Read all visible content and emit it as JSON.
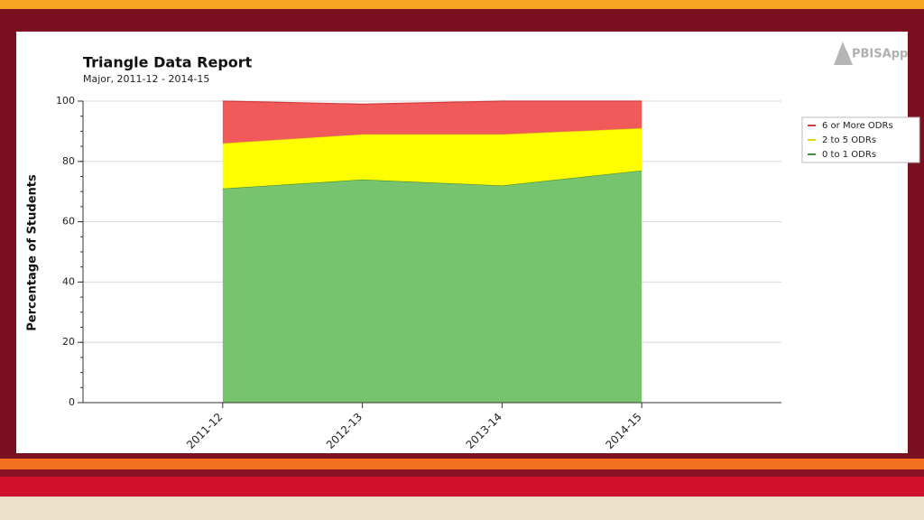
{
  "logo_text": "PBISApps",
  "chart_data": {
    "type": "stacked-area",
    "title": "Triangle Data Report",
    "subtitle": "Major, 2011-12 - 2014-15",
    "y_label": "Percentage of Students",
    "categories": [
      "2011-12",
      "2012-13",
      "2013-14",
      "2014-15"
    ],
    "series": [
      {
        "name": "0 to 1 ODRs",
        "color": "#78c46e",
        "line_color": "#3f8f3a",
        "values": [
          71,
          74,
          72,
          77
        ]
      },
      {
        "name": "2 to 5 ODRs",
        "color": "#ffff00",
        "line_color": "#e0d800",
        "values": [
          15,
          15,
          17,
          14
        ]
      },
      {
        "name": "6 or More ODRs",
        "color": "#f05a5a",
        "line_color": "#d63c3c",
        "values": [
          14,
          10,
          11,
          9
        ]
      }
    ],
    "ylim": [
      0,
      100
    ],
    "yticks": [
      0,
      20,
      40,
      60,
      80,
      100
    ],
    "grid": true,
    "legend": "right"
  }
}
